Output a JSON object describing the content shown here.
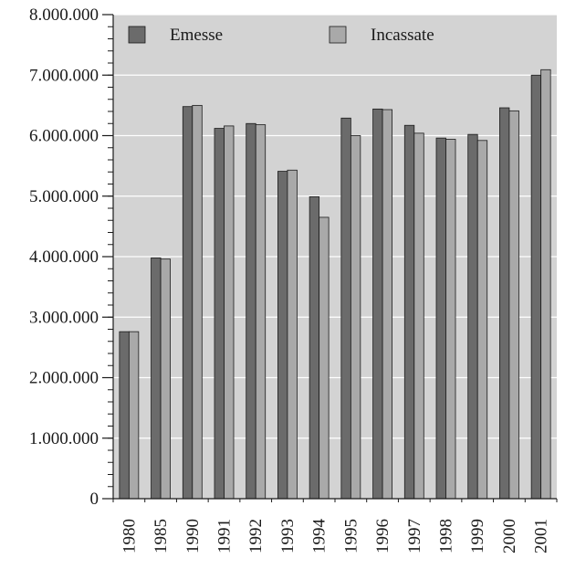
{
  "chart_data": {
    "type": "bar",
    "categories": [
      "1980",
      "1985",
      "1990",
      "1991",
      "1992",
      "1993",
      "1994",
      "1995",
      "1996",
      "1997",
      "1998",
      "1999",
      "2000",
      "2001"
    ],
    "series": [
      {
        "name": "Emesse",
        "color": "#6b6b6b",
        "values": [
          2760000,
          3980000,
          6480000,
          6120000,
          6200000,
          5410000,
          4990000,
          6290000,
          6440000,
          6170000,
          5960000,
          6020000,
          6460000,
          7000000
        ]
      },
      {
        "name": "Incassate",
        "color": "#a9a9a9",
        "values": [
          2760000,
          3960000,
          6500000,
          6160000,
          6180000,
          5430000,
          4650000,
          6000000,
          6430000,
          6040000,
          5940000,
          5920000,
          6410000,
          7090000
        ]
      }
    ],
    "ylim": [
      0,
      8000000
    ],
    "yticks": [
      0,
      1000000,
      2000000,
      3000000,
      4000000,
      5000000,
      6000000,
      7000000,
      8000000
    ],
    "ytick_labels": [
      "0",
      "1.000.000",
      "2.000.000",
      "3.000.000",
      "4.000.000",
      "5.000.000",
      "6.000.000",
      "7.000.000",
      "8.000.000"
    ],
    "grid": true,
    "legend": "top",
    "plot_background": "#d3d3d3"
  }
}
